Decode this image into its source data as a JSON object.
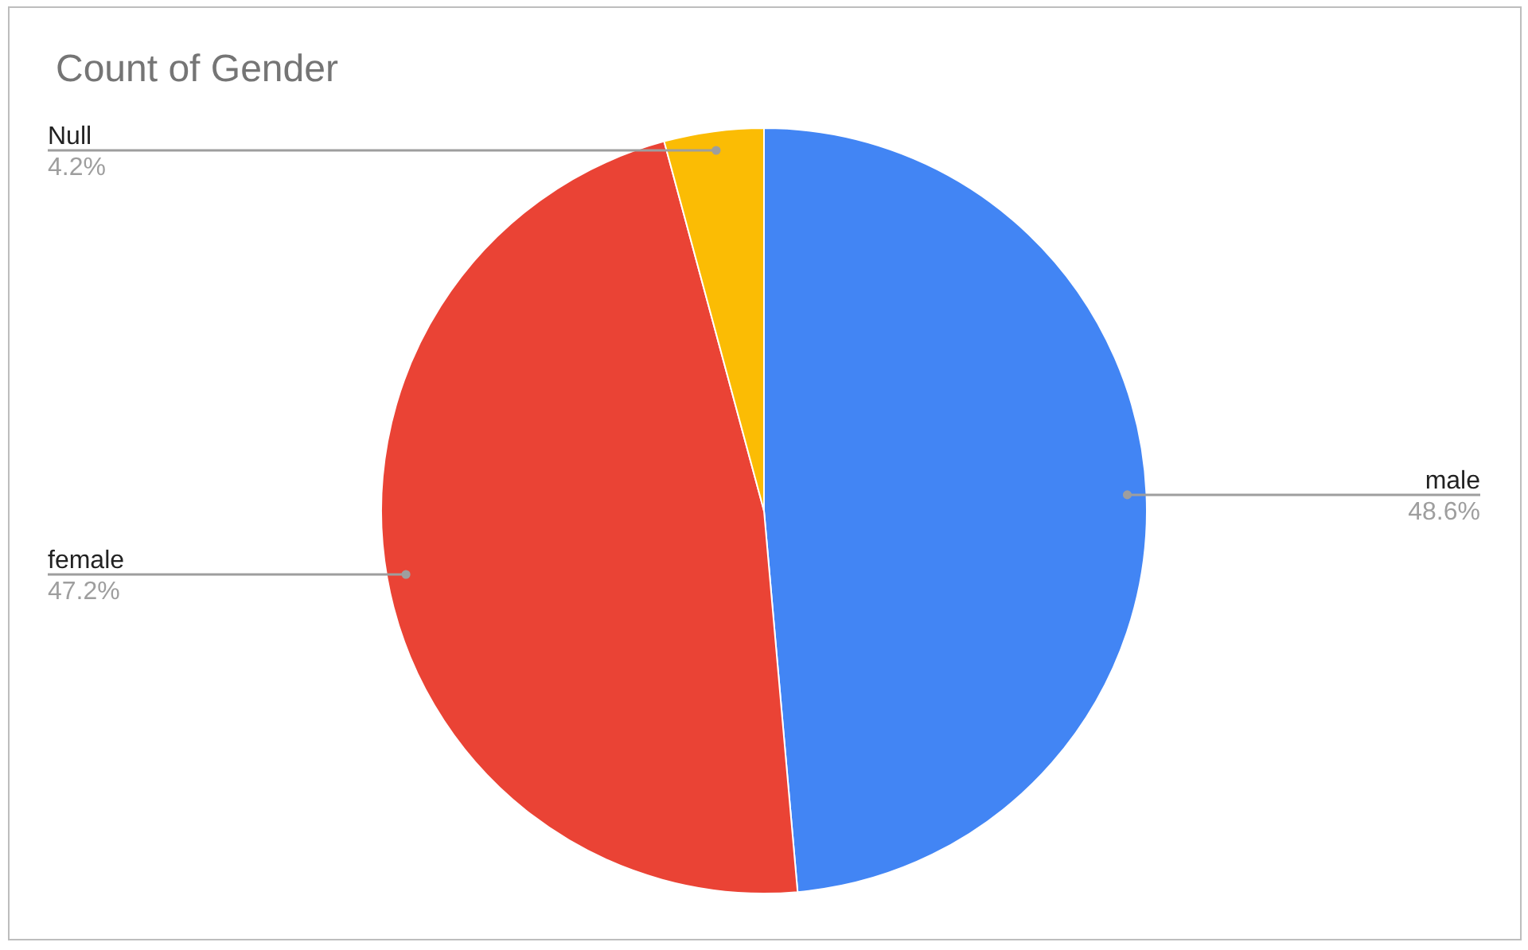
{
  "chart_data": {
    "type": "pie",
    "title": "Count of Gender",
    "categories": [
      "male",
      "female",
      "Null"
    ],
    "values": [
      48.6,
      47.2,
      4.2
    ],
    "colors": [
      "#4285f4",
      "#ea4335",
      "#fbbc04"
    ],
    "value_labels": [
      "48.6%",
      "47.2%",
      "4.2%"
    ],
    "legend": false
  }
}
